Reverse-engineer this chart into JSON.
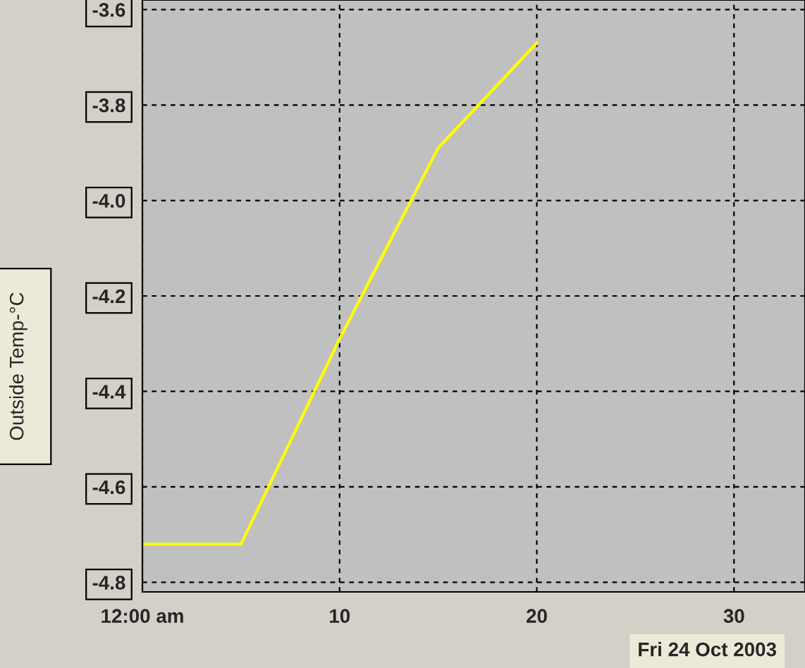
{
  "chart_data": {
    "type": "line",
    "ylabel": "Outside Temp-°C",
    "x": [
      0,
      5,
      10,
      15,
      20
    ],
    "series": [
      {
        "color": "#ffff00",
        "values": [
          -4.72,
          -4.72,
          -4.29,
          -3.89,
          -3.67
        ]
      }
    ],
    "xlim": [
      0,
      33.6
    ],
    "ylim": [
      -4.82,
      -3.58
    ],
    "xticks": [
      {
        "value": 0,
        "label": "12:00 am"
      },
      10,
      20,
      30
    ],
    "yticks": [
      -3.6,
      -3.8,
      {
        "value": -4.0,
        "label": "-4.0"
      },
      -4.2,
      -4.4,
      -4.6,
      -4.8
    ],
    "grid": true,
    "line_style": "solid",
    "marker": "none",
    "annotations": [
      "Fri 24 Oct 2003"
    ]
  }
}
